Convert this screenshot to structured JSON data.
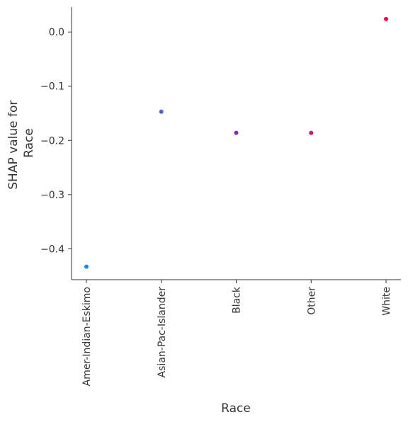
{
  "chart_data": {
    "type": "scatter",
    "title": "",
    "xlabel": "Race",
    "ylabel_lines": [
      "SHAP value for",
      "Race"
    ],
    "categories": [
      "Amer-Indian-Eskimo",
      "Asian-Pac-Islander",
      "Black",
      "Other",
      "White"
    ],
    "values": [
      -0.433,
      -0.147,
      -0.186,
      -0.186,
      0.024
    ],
    "point_colors": [
      "#1e88e5",
      "#4e5fd2",
      "#8a2aa8",
      "#d4136e",
      "#ff0052"
    ],
    "yticks": [
      0.0,
      -0.1,
      -0.2,
      -0.3,
      -0.4
    ],
    "ytick_labels": [
      "0.0",
      "−0.1",
      "−0.2",
      "−0.3",
      "−0.4"
    ],
    "ylim": [
      -0.457,
      0.046
    ],
    "grid": false,
    "legend": "none"
  }
}
